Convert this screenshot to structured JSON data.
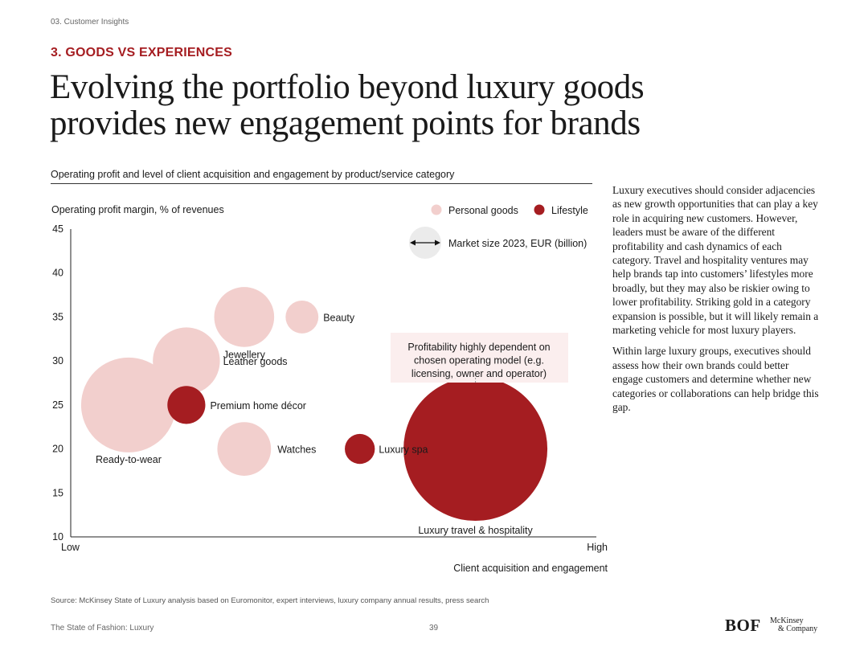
{
  "header": {
    "section": "03. Customer Insights",
    "kicker": "3. GOODS VS EXPERIENCES",
    "headline_line1": "Evolving the portfolio beyond luxury goods",
    "headline_line2": "provides new engagement points for brands"
  },
  "chart_title": "Operating profit and level of client acquisition and engagement by product/service category",
  "body_text": [
    "Luxury executives should consider adjacencies as new growth opportunities that can play a key role in acquiring new customers. However, leaders must be aware of the different profitability and cash dynamics of each category. Travel and hospitality ventures may help brands tap into customers’ lifestyles more broadly, but they may also be riskier owing to lower profitability. Striking gold in a category expansion is possible, but it will likely remain a marketing vehicle for most luxury players.",
    "Within large luxury groups, executives should assess how their own brands could better engage customers and determine whether new categories or collaborations can help bridge this gap."
  ],
  "colors": {
    "brand_red": "#a51d21",
    "personal_goods": "#f2cfcd",
    "lifestyle": "#a51d21",
    "size_legend": "#ebebeb",
    "annotation_bg": "#fbeeee"
  },
  "chart_data": {
    "type": "scatter",
    "subtype": "bubble",
    "ylabel": "Operating profit margin, % of revenues",
    "xlabel": "Client acquisition and engagement",
    "x_low_label": "Low",
    "x_high_label": "High",
    "xlim": [
      0,
      10
    ],
    "ylim": [
      10,
      45
    ],
    "yticks": [
      10,
      15,
      20,
      25,
      30,
      35,
      40,
      45
    ],
    "legend": {
      "series": [
        {
          "name": "Personal goods",
          "color": "#f2cfcd"
        },
        {
          "name": "Lifestyle",
          "color": "#a51d21"
        }
      ],
      "size_label": "Market size 2023, EUR (billion)",
      "position": "top-right"
    },
    "points": [
      {
        "label": "Ready-to-wear",
        "series": "Personal goods",
        "x": 1.1,
        "y": 25,
        "size": 100
      },
      {
        "label": "Leather goods",
        "series": "Personal goods",
        "x": 2.2,
        "y": 30,
        "size": 50
      },
      {
        "label": "Jewellery",
        "series": "Personal goods",
        "x": 3.3,
        "y": 35,
        "size": 40
      },
      {
        "label": "Beauty",
        "series": "Personal goods",
        "x": 4.4,
        "y": 35,
        "size": 12
      },
      {
        "label": "Watches",
        "series": "Personal goods",
        "x": 3.3,
        "y": 20,
        "size": 32
      },
      {
        "label": "Premium home décor",
        "series": "Lifestyle",
        "x": 2.2,
        "y": 25,
        "size": 16
      },
      {
        "label": "Luxury spa",
        "series": "Lifestyle",
        "x": 5.5,
        "y": 20,
        "size": 10
      },
      {
        "label": "Luxury travel & hospitality",
        "series": "Lifestyle",
        "x": 7.7,
        "y": 20,
        "size": 230
      }
    ],
    "annotation": "Profitability highly dependent on chosen operating model (e.g. licensing, owner and operator)"
  },
  "footer": {
    "source": "Source: McKinsey State of Luxury analysis based on Euromonitor, expert interviews, luxury company annual results, press search",
    "publication": "The State of Fashion: Luxury",
    "page": "39",
    "logo_bof": "BOF",
    "logo_mck_line1": "McKinsey",
    "logo_mck_line2": "& Company"
  }
}
